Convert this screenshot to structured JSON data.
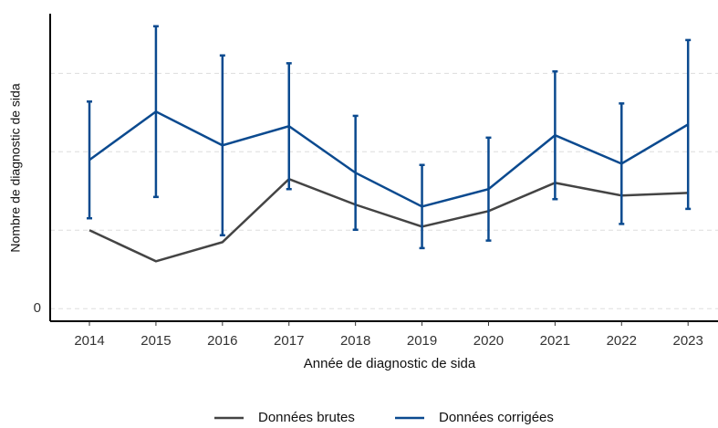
{
  "chart_data": {
    "type": "line",
    "xlabel": "Année de diagnostic de sida",
    "ylabel": "Nombre de diagnostic de sida",
    "x": [
      2014,
      2015,
      2016,
      2017,
      2018,
      2019,
      2020,
      2021,
      2022,
      2023
    ],
    "xlim": [
      2013.41,
      2023.45
    ],
    "xticks": [
      2014,
      2015,
      2016,
      2017,
      2018,
      2019,
      2020,
      2021,
      2022,
      2023
    ],
    "ylim": [
      -8,
      188
    ],
    "yticks": [
      0,
      {
        "value": 50,
        "label": null
      },
      {
        "value": 100,
        "label": null
      },
      {
        "value": 150,
        "label": null
      }
    ],
    "grid": true,
    "legend": "bottom",
    "series": [
      {
        "name": "Données brutes",
        "color": "#444444",
        "values": [
          50,
          30.2,
          42.4,
          82.6,
          66.3,
          52.3,
          62.2,
          80.2,
          72.1,
          73.8
        ]
      },
      {
        "name": "Données corrigées",
        "color": "#0b4a8f",
        "values": [
          94.8,
          125.6,
          104.1,
          116.3,
          86.6,
          65.1,
          76.2,
          110.5,
          92.4,
          117.4
        ],
        "errors": [
          37.2,
          54.4,
          57.3,
          40.1,
          36.3,
          26.5,
          32.8,
          40.7,
          38.4,
          53.8
        ]
      }
    ]
  }
}
